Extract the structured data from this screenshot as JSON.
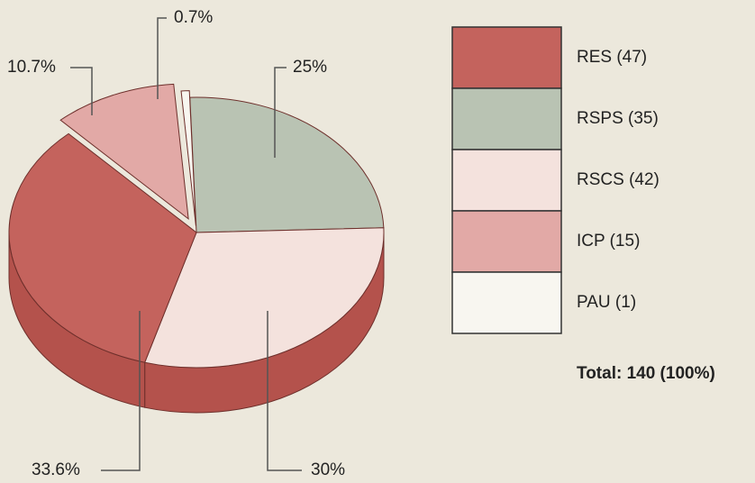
{
  "chart_data": {
    "type": "pie",
    "categories": [
      "RES (47)",
      "RSPS (35)",
      "RSCS (42)",
      "ICP (15)",
      "PAU (1)"
    ],
    "values": [
      33.6,
      25,
      30,
      10.7,
      0.7
    ],
    "value_labels": [
      "33.6%",
      "25%",
      "30%",
      "10.7%",
      "0.7%"
    ],
    "colors": [
      "#c4635d",
      "#b9c3b3",
      "#f4e2dd",
      "#e2a9a6",
      "#f8f6f0"
    ],
    "annotation": "Total: 140 (100%)"
  }
}
